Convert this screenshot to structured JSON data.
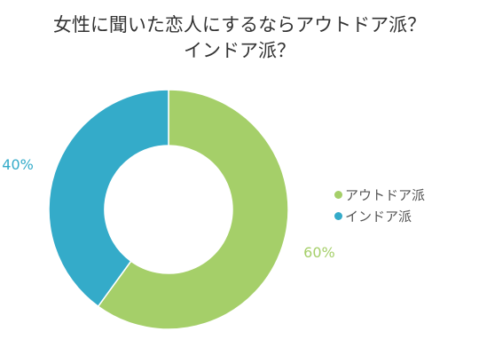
{
  "chart_data": {
    "type": "pie",
    "title_lines": [
      "女性に聞いた恋人にするならアウトドア派？",
      "インドア派？"
    ],
    "categories": [
      "アウトドア派",
      "インドア派"
    ],
    "values": [
      60,
      40
    ],
    "value_labels": [
      "60%",
      "40%"
    ],
    "colors": [
      "#a5cf69",
      "#34abc9"
    ],
    "donut": true,
    "legend_position": "right"
  }
}
